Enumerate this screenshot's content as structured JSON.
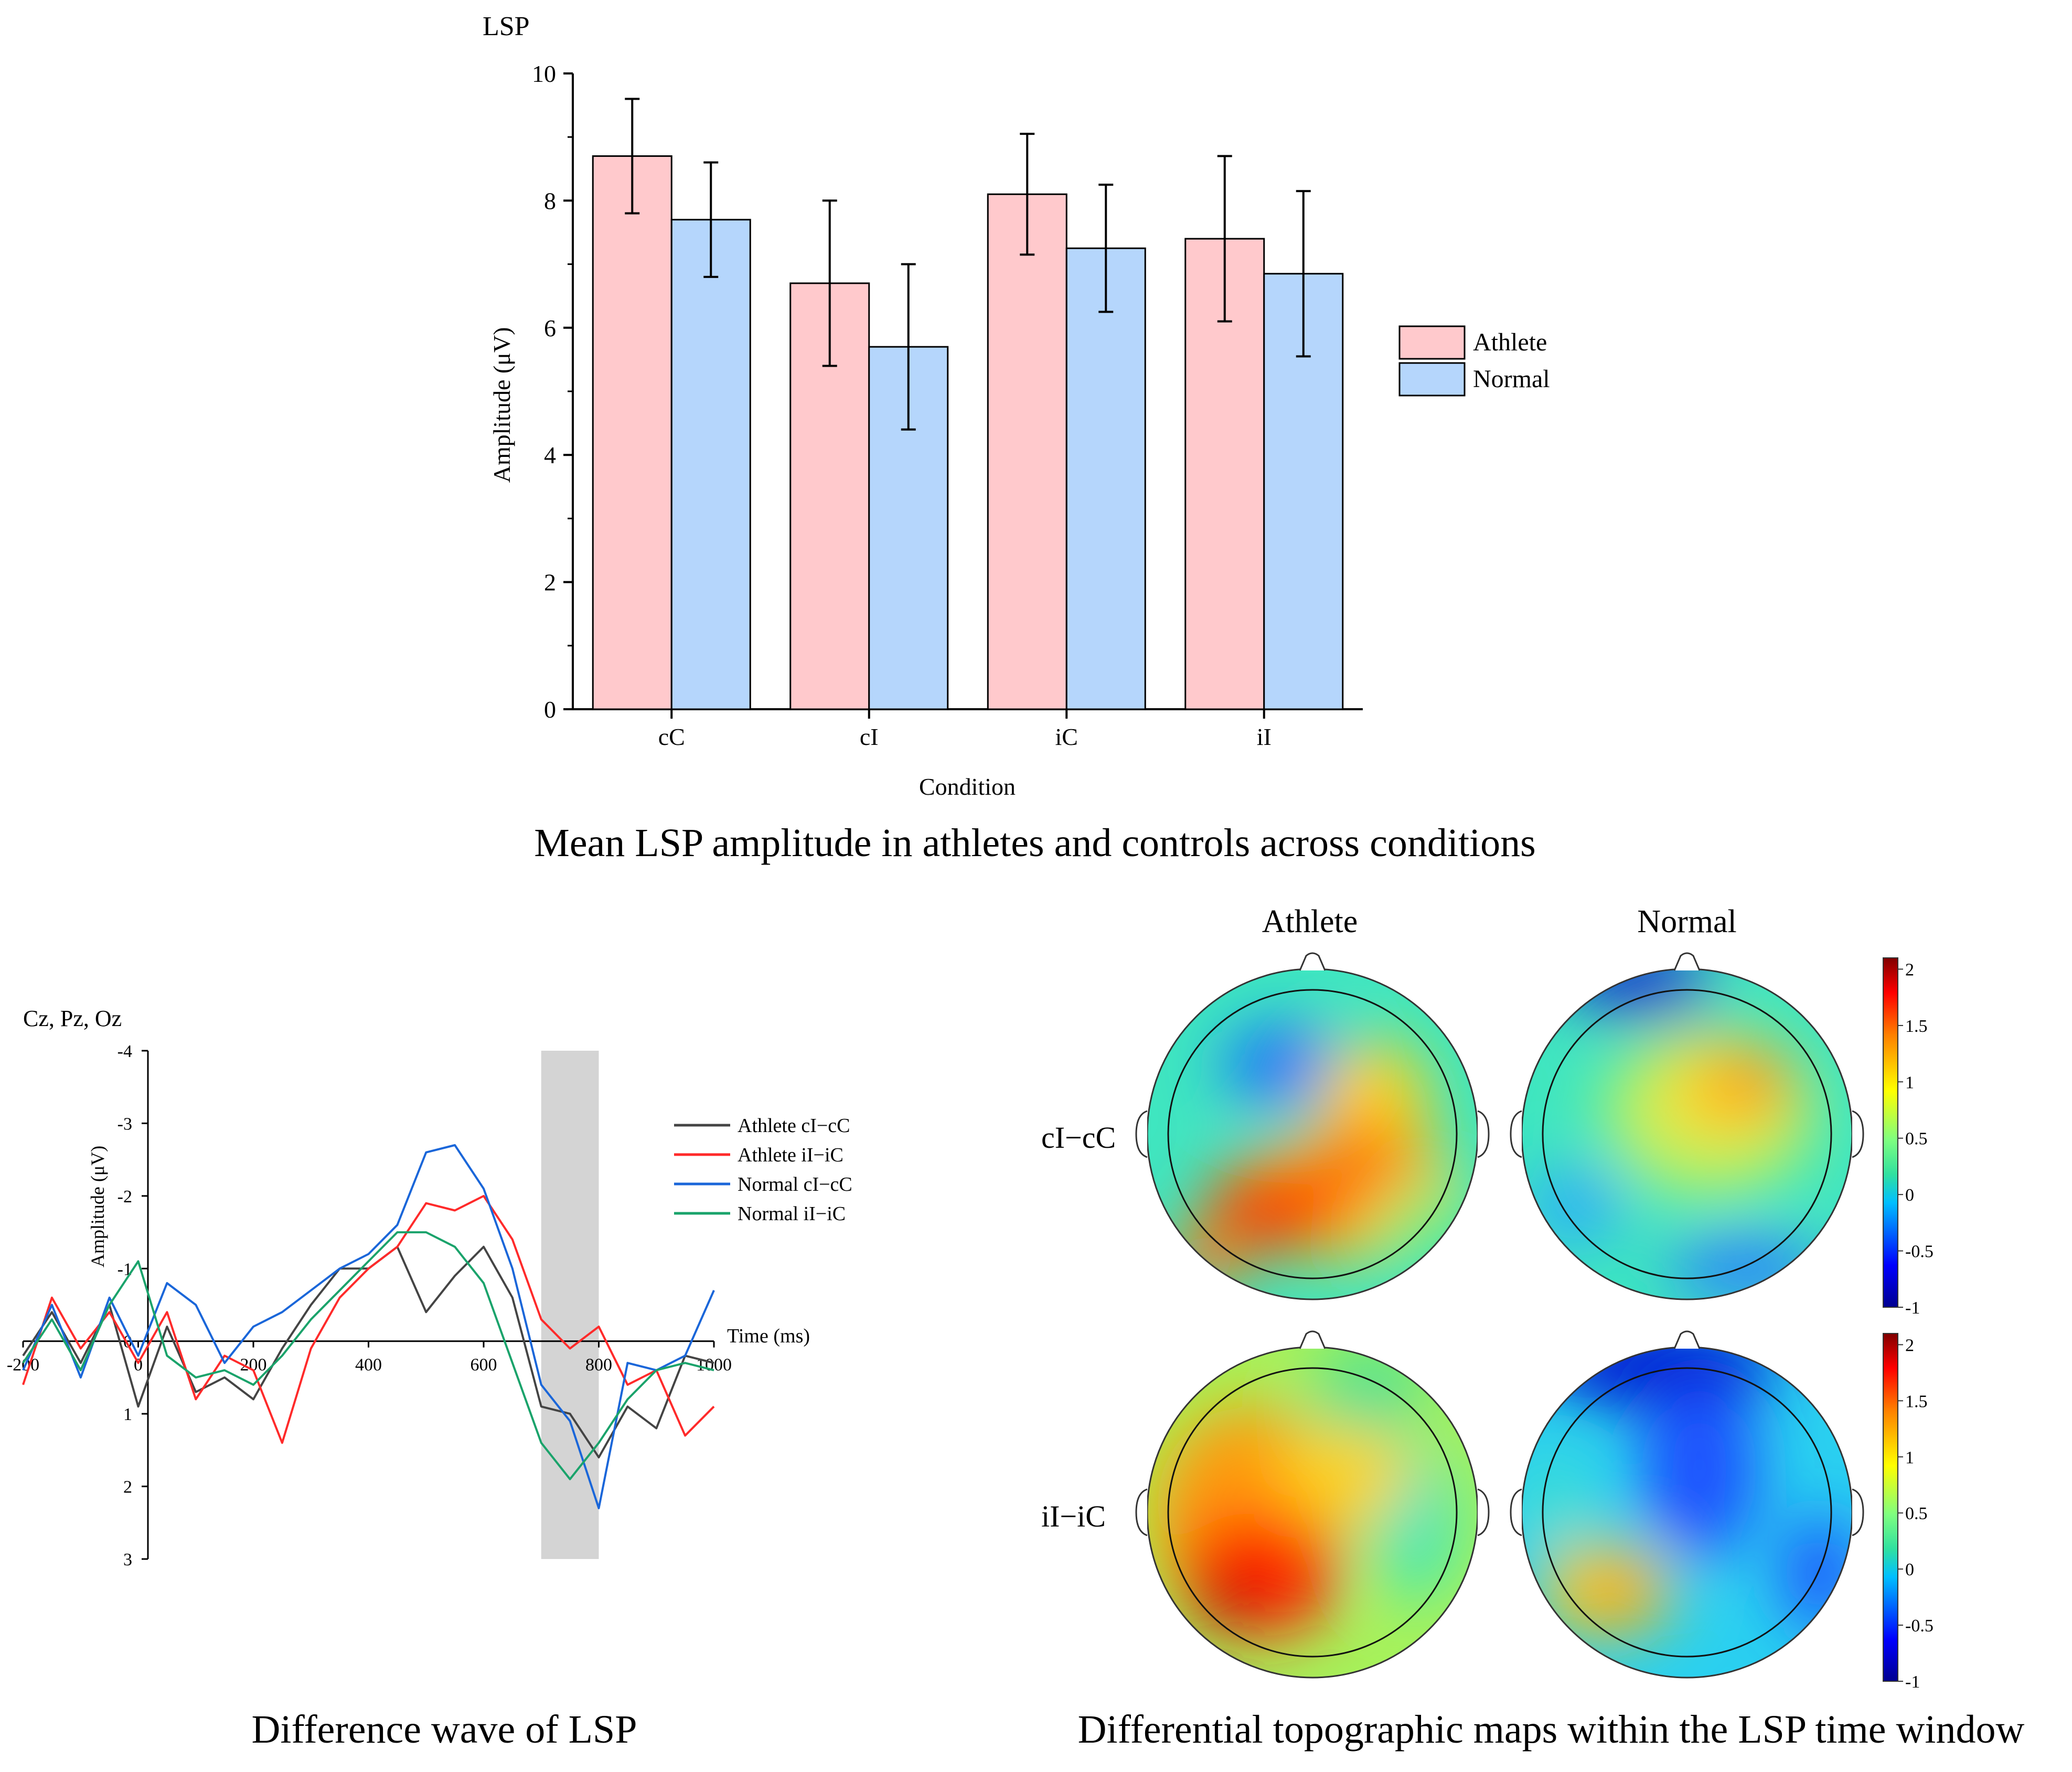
{
  "bar_panel": {
    "heading": "LSP",
    "caption": "Mean LSP amplitude in athletes and controls across conditions"
  },
  "wave_panel": {
    "heading": "Cz, Pz, Oz",
    "caption": "Difference wave of LSP"
  },
  "topo_panel": {
    "caption": "Differential topographic maps within the LSP time window",
    "col_titles": [
      "Athlete",
      "Normal"
    ],
    "row_labels": [
      "cI−cC",
      "iI−iC"
    ],
    "colorbar_ticks": [
      "2",
      "1.5",
      "1",
      "0.5",
      "0",
      "-0.5",
      "-1"
    ],
    "colorbar_range": [
      -1,
      2.1
    ],
    "colors": [
      "#00008f",
      "#0000ff",
      "#00bfff",
      "#30e0a0",
      "#7fff7f",
      "#ffff00",
      "#ff7f00",
      "#ff0000",
      "#800000"
    ]
  },
  "chart_data": [
    {
      "type": "bar",
      "title": "LSP",
      "xlabel": "Condition",
      "ylabel": "Amplitude (μV)",
      "categories": [
        "cC",
        "cI",
        "iC",
        "iI"
      ],
      "ylim": [
        0,
        10
      ],
      "yticks": [
        0,
        2,
        4,
        6,
        8,
        10
      ],
      "legend_position": "right",
      "series": [
        {
          "name": "Athlete",
          "color": "#ffc9cc",
          "values": [
            8.7,
            6.7,
            8.1,
            7.4
          ],
          "error": [
            0.9,
            1.3,
            0.95,
            1.3
          ]
        },
        {
          "name": "Normal",
          "color": "#b5d6fc",
          "values": [
            7.7,
            5.7,
            7.25,
            6.85
          ],
          "error": [
            0.9,
            1.3,
            1.0,
            1.3
          ]
        }
      ]
    },
    {
      "type": "line",
      "title": "Cz, Pz, Oz",
      "xlabel": "Time (ms)",
      "ylabel": "Amplitude (μV)",
      "xlim": [
        -200,
        1000
      ],
      "ylim": [
        -4,
        3
      ],
      "y_inverted": true,
      "xticks": [
        -200,
        0,
        200,
        400,
        600,
        800,
        1000
      ],
      "yticks": [
        -4,
        -3,
        -2,
        -1,
        0,
        1,
        2,
        3
      ],
      "shaded_window": [
        700,
        800
      ],
      "legend_position": "right",
      "series": [
        {
          "name": "Athlete cI−cC",
          "color": "#444444",
          "x": [
            -200,
            -150,
            -100,
            -50,
            0,
            50,
            100,
            150,
            200,
            250,
            300,
            350,
            400,
            450,
            500,
            550,
            600,
            650,
            700,
            750,
            800,
            850,
            900,
            950,
            1000
          ],
          "y": [
            0.2,
            -0.4,
            0.3,
            -0.5,
            0.9,
            -0.2,
            0.7,
            0.5,
            0.8,
            0.1,
            -0.5,
            -1.0,
            -1.0,
            -1.3,
            -0.4,
            -0.9,
            -1.3,
            -0.6,
            0.9,
            1.0,
            1.6,
            0.9,
            1.2,
            0.2,
            0.3
          ]
        },
        {
          "name": "Athlete iI−iC",
          "color": "#ff2a2a",
          "x": [
            -200,
            -150,
            -100,
            -50,
            0,
            50,
            100,
            150,
            200,
            250,
            300,
            350,
            400,
            450,
            500,
            550,
            600,
            650,
            700,
            750,
            800,
            850,
            900,
            950,
            1000
          ],
          "y": [
            0.6,
            -0.6,
            0.1,
            -0.4,
            0.3,
            -0.4,
            0.8,
            0.2,
            0.4,
            1.4,
            0.1,
            -0.6,
            -1.0,
            -1.3,
            -1.9,
            -1.8,
            -2.0,
            -1.4,
            -0.3,
            0.1,
            -0.2,
            0.6,
            0.4,
            1.3,
            0.9
          ]
        },
        {
          "name": "Normal cI−cC",
          "color": "#1a66d9",
          "x": [
            -200,
            -150,
            -100,
            -50,
            0,
            50,
            100,
            150,
            200,
            250,
            300,
            350,
            400,
            450,
            500,
            550,
            600,
            650,
            700,
            750,
            800,
            850,
            900,
            950,
            1000
          ],
          "y": [
            0.4,
            -0.5,
            0.5,
            -0.6,
            0.2,
            -0.8,
            -0.5,
            0.3,
            -0.2,
            -0.4,
            -0.7,
            -1.0,
            -1.2,
            -1.6,
            -2.6,
            -2.7,
            -2.1,
            -1.0,
            0.6,
            1.1,
            2.3,
            0.3,
            0.4,
            0.2,
            -0.7
          ]
        },
        {
          "name": "Normal iI−iC",
          "color": "#1aa36b",
          "x": [
            -200,
            -150,
            -100,
            -50,
            0,
            50,
            100,
            150,
            200,
            250,
            300,
            350,
            400,
            450,
            500,
            550,
            600,
            650,
            700,
            750,
            800,
            850,
            900,
            950,
            1000
          ],
          "y": [
            0.3,
            -0.3,
            0.4,
            -0.5,
            -1.1,
            0.2,
            0.5,
            0.4,
            0.6,
            0.2,
            -0.3,
            -0.7,
            -1.1,
            -1.5,
            -1.5,
            -1.3,
            -0.8,
            0.3,
            1.4,
            1.9,
            1.4,
            0.8,
            0.4,
            0.3,
            0.4
          ]
        }
      ]
    }
  ]
}
